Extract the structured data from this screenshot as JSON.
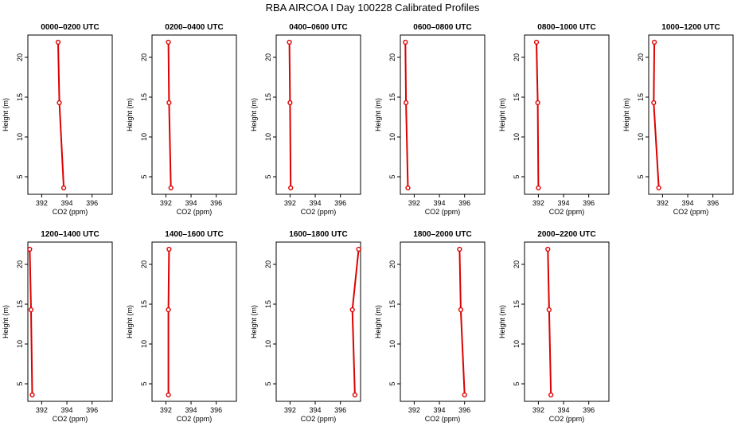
{
  "figure": {
    "title": "RBA AIRCOA I Day 100228  Calibrated Profiles"
  },
  "colors": {
    "series": "#dd0000",
    "axis": "#000000"
  },
  "chart_data": [
    {
      "type": "line",
      "title": "0000–0200 UTC",
      "xlabel": "CO2 (ppm)",
      "ylabel": "Height (m)",
      "xlim": [
        390.9,
        397.6
      ],
      "ylim": [
        2.8,
        22.8
      ],
      "xticks": [
        392,
        394,
        396
      ],
      "yticks": [
        5,
        10,
        15,
        20
      ],
      "series": [
        {
          "x": [
            393.75,
            393.4,
            393.3
          ],
          "y": [
            3.6,
            14.3,
            21.9
          ]
        }
      ]
    },
    {
      "type": "line",
      "title": "0200–0400 UTC",
      "xlabel": "CO2 (ppm)",
      "ylabel": "Height (m)",
      "xlim": [
        390.9,
        397.6
      ],
      "ylim": [
        2.8,
        22.8
      ],
      "xticks": [
        392,
        394,
        396
      ],
      "yticks": [
        5,
        10,
        15,
        20
      ],
      "series": [
        {
          "x": [
            392.4,
            392.25,
            392.2
          ],
          "y": [
            3.6,
            14.3,
            21.9
          ]
        }
      ]
    },
    {
      "type": "line",
      "title": "0400–0600 UTC",
      "xlabel": "CO2 (ppm)",
      "ylabel": "Height (m)",
      "xlim": [
        390.9,
        397.6
      ],
      "ylim": [
        2.8,
        22.8
      ],
      "xticks": [
        392,
        394,
        396
      ],
      "yticks": [
        5,
        10,
        15,
        20
      ],
      "series": [
        {
          "x": [
            392.05,
            392.0,
            391.95
          ],
          "y": [
            3.6,
            14.3,
            21.9
          ]
        }
      ]
    },
    {
      "type": "line",
      "title": "0600–0800 UTC",
      "xlabel": "CO2 (ppm)",
      "ylabel": "Height (m)",
      "xlim": [
        390.9,
        397.6
      ],
      "ylim": [
        2.8,
        22.8
      ],
      "xticks": [
        392,
        394,
        396
      ],
      "yticks": [
        5,
        10,
        15,
        20
      ],
      "series": [
        {
          "x": [
            391.5,
            391.35,
            391.3
          ],
          "y": [
            3.6,
            14.3,
            21.9
          ]
        }
      ]
    },
    {
      "type": "line",
      "title": "0800–1000 UTC",
      "xlabel": "CO2 (ppm)",
      "ylabel": "Height (m)",
      "xlim": [
        390.9,
        397.6
      ],
      "ylim": [
        2.8,
        22.8
      ],
      "xticks": [
        392,
        394,
        396
      ],
      "yticks": [
        5,
        10,
        15,
        20
      ],
      "series": [
        {
          "x": [
            392.0,
            391.95,
            391.85
          ],
          "y": [
            3.6,
            14.3,
            21.9
          ]
        }
      ]
    },
    {
      "type": "line",
      "title": "1000–1200 UTC",
      "xlabel": "CO2 (ppm)",
      "ylabel": "Height (m)",
      "xlim": [
        390.9,
        397.6
      ],
      "ylim": [
        2.8,
        22.8
      ],
      "xticks": [
        392,
        394,
        396
      ],
      "yticks": [
        5,
        10,
        15,
        20
      ],
      "series": [
        {
          "x": [
            391.7,
            391.3,
            391.35
          ],
          "y": [
            3.6,
            14.3,
            21.9
          ]
        }
      ]
    },
    {
      "type": "line",
      "title": "1200–1400 UTC",
      "xlabel": "CO2 (ppm)",
      "ylabel": "Height (m)",
      "xlim": [
        390.9,
        397.6
      ],
      "ylim": [
        2.8,
        22.8
      ],
      "xticks": [
        392,
        394,
        396
      ],
      "yticks": [
        5,
        10,
        15,
        20
      ],
      "series": [
        {
          "x": [
            391.25,
            391.15,
            391.05
          ],
          "y": [
            3.6,
            14.3,
            21.9
          ]
        }
      ]
    },
    {
      "type": "line",
      "title": "1400–1600 UTC",
      "xlabel": "CO2 (ppm)",
      "ylabel": "Height (m)",
      "xlim": [
        390.9,
        397.6
      ],
      "ylim": [
        2.8,
        22.8
      ],
      "xticks": [
        392,
        394,
        396
      ],
      "yticks": [
        5,
        10,
        15,
        20
      ],
      "series": [
        {
          "x": [
            392.2,
            392.2,
            392.25
          ],
          "y": [
            3.6,
            14.3,
            21.9
          ]
        }
      ]
    },
    {
      "type": "line",
      "title": "1600–1800 UTC",
      "xlabel": "CO2 (ppm)",
      "ylabel": "Height (m)",
      "xlim": [
        390.9,
        397.6
      ],
      "ylim": [
        2.8,
        22.8
      ],
      "xticks": [
        392,
        394,
        396
      ],
      "yticks": [
        5,
        10,
        15,
        20
      ],
      "series": [
        {
          "x": [
            397.15,
            396.95,
            397.45
          ],
          "y": [
            3.6,
            14.3,
            21.9
          ]
        }
      ]
    },
    {
      "type": "line",
      "title": "1800–2000 UTC",
      "xlabel": "CO2 (ppm)",
      "ylabel": "Height (m)",
      "xlim": [
        390.9,
        397.6
      ],
      "ylim": [
        2.8,
        22.8
      ],
      "xticks": [
        392,
        394,
        396
      ],
      "yticks": [
        5,
        10,
        15,
        20
      ],
      "series": [
        {
          "x": [
            396.0,
            395.7,
            395.6
          ],
          "y": [
            3.6,
            14.3,
            21.9
          ]
        }
      ]
    },
    {
      "type": "line",
      "title": "2000–2200 UTC",
      "xlabel": "CO2 (ppm)",
      "ylabel": "Height (m)",
      "xlim": [
        390.9,
        397.6
      ],
      "ylim": [
        2.8,
        22.8
      ],
      "xticks": [
        392,
        394,
        396
      ],
      "yticks": [
        5,
        10,
        15,
        20
      ],
      "series": [
        {
          "x": [
            393.0,
            392.85,
            392.75
          ],
          "y": [
            3.6,
            14.3,
            21.9
          ]
        }
      ]
    }
  ]
}
